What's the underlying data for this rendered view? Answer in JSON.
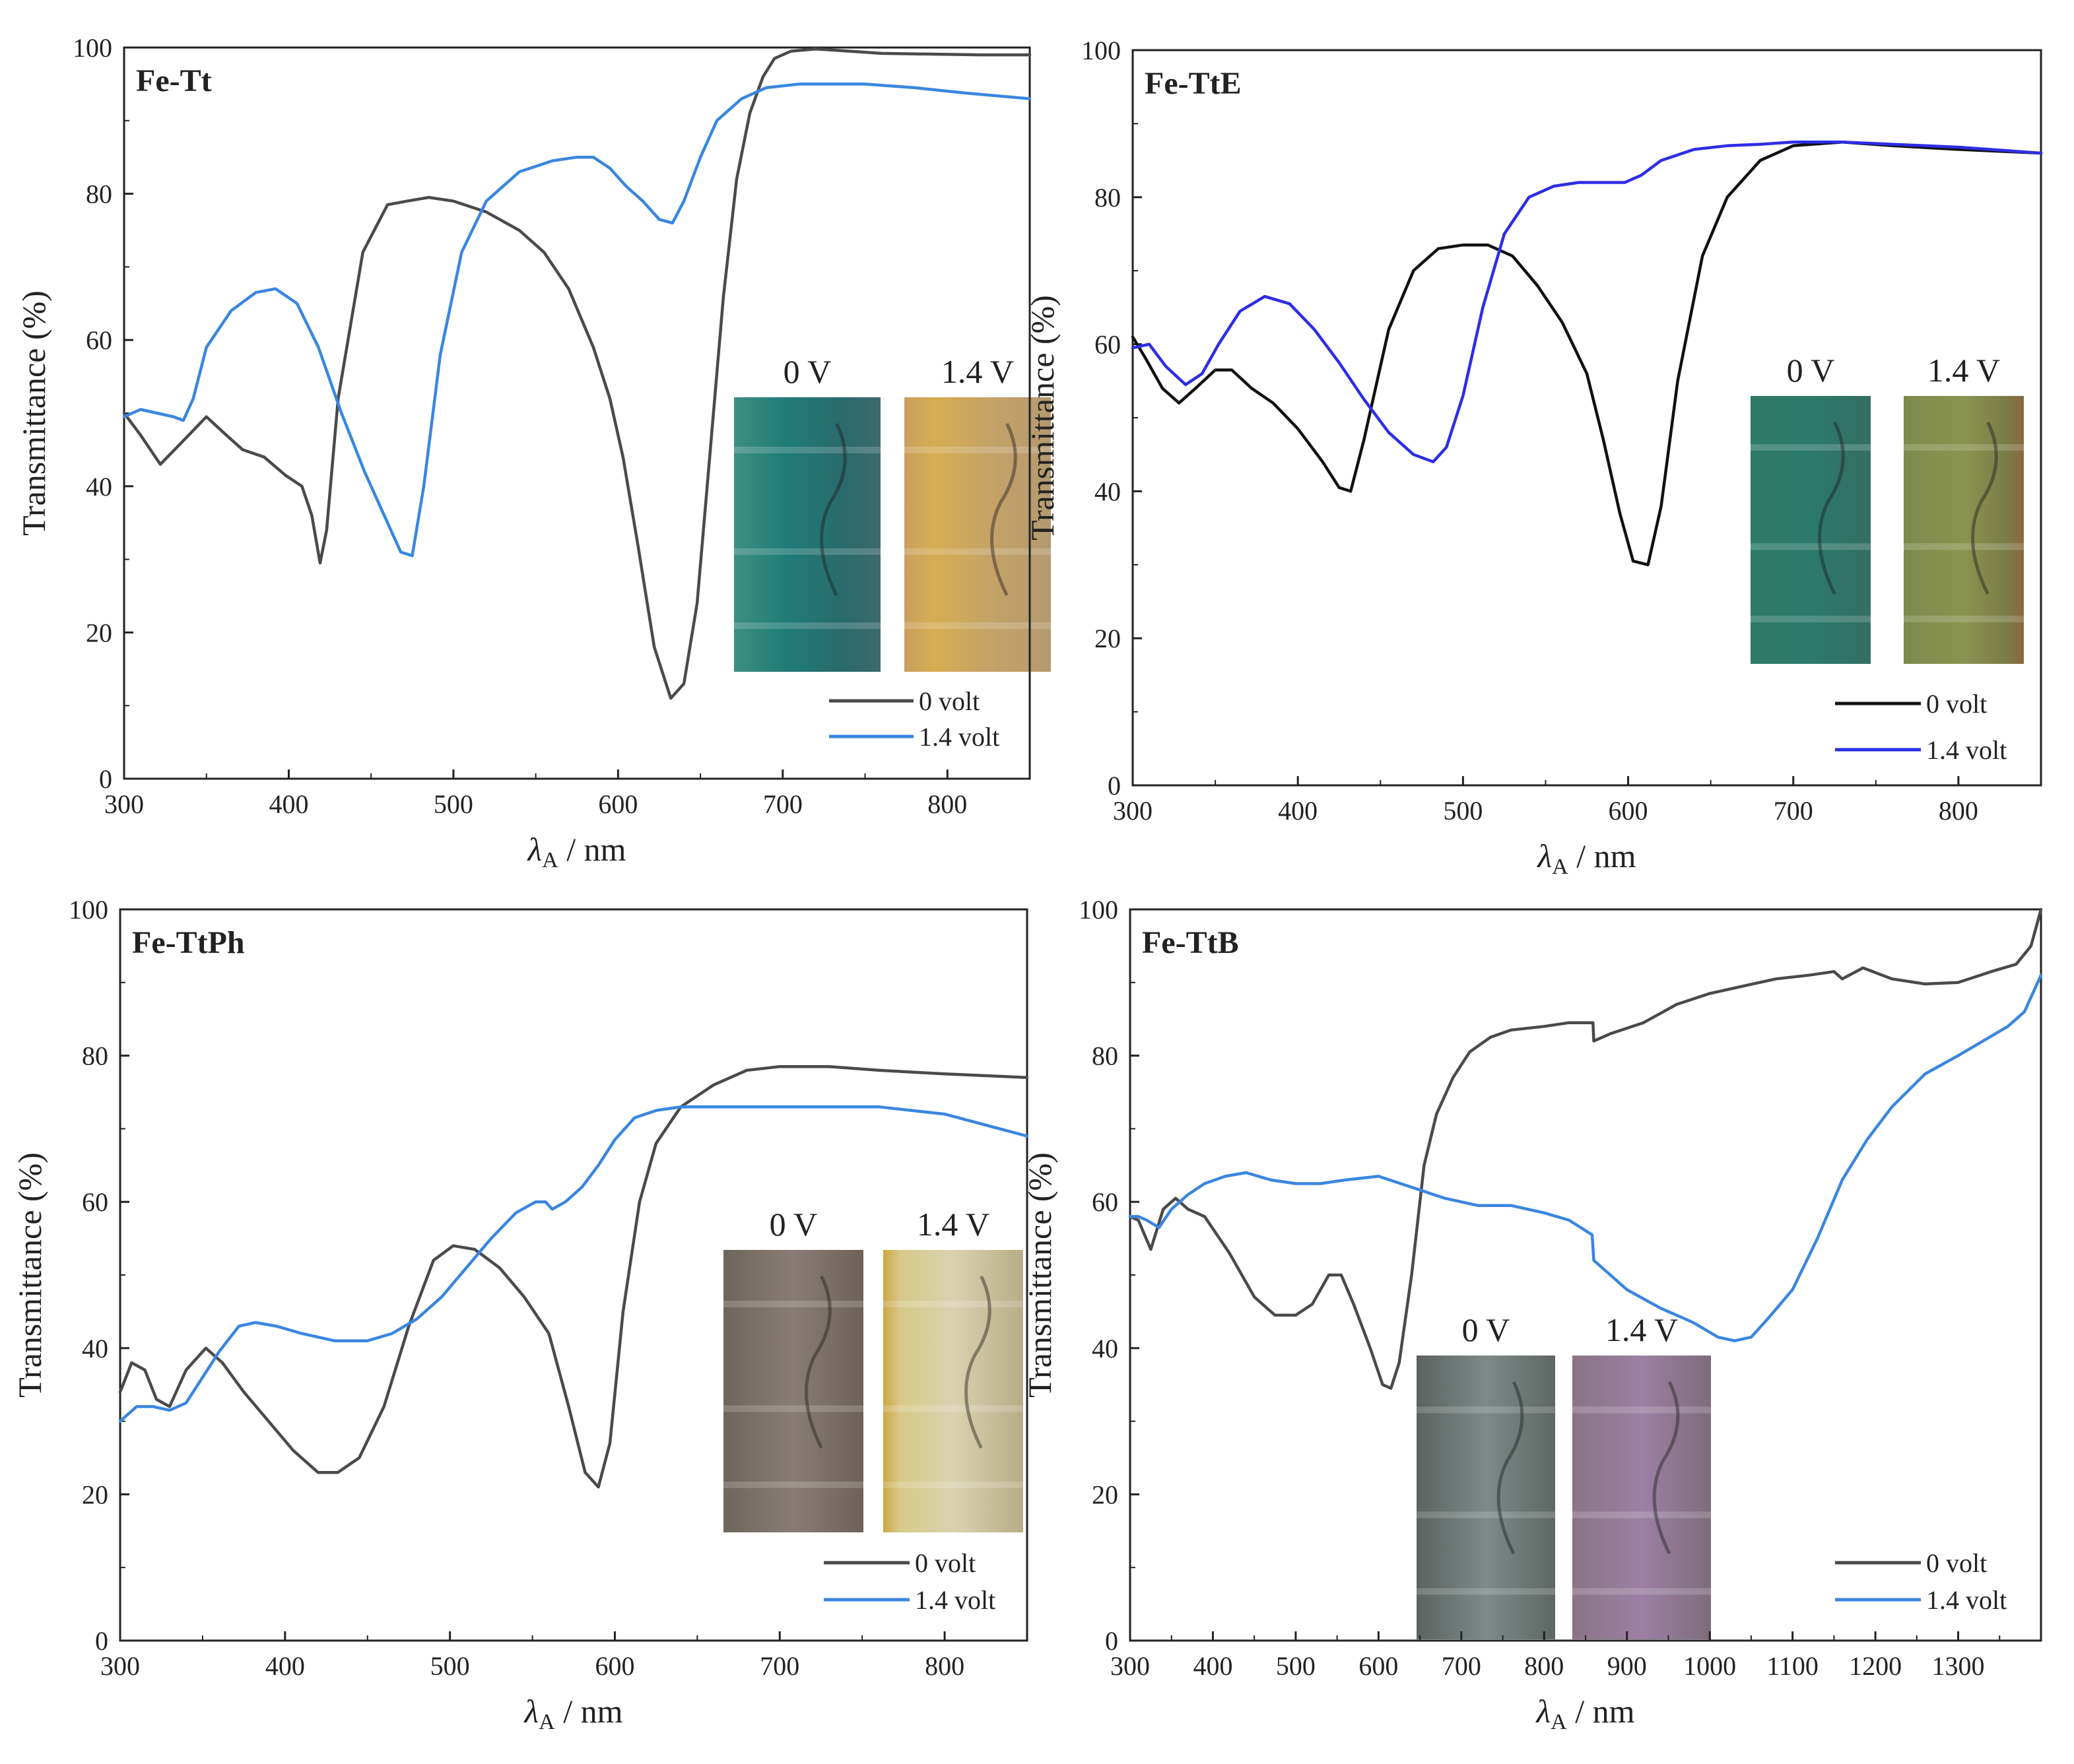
{
  "figure": {
    "x_axis_label": "λA / nm",
    "x_axis_label_main": "λ",
    "x_axis_label_sub": "A",
    "x_axis_label_unit": " / nm",
    "y_axis_label": "Transmittance (%)"
  },
  "colors": {
    "volt0": "#4a4a4a",
    "volt0_dark": "#111111",
    "volt14": "#3a86e0",
    "volt14_violet": "#2d2de6",
    "axis": "#222222"
  },
  "chart_data": [
    {
      "type": "line",
      "title": "Fe-Tt",
      "xlabel": "λA / nm",
      "ylabel": "Transmittance (%)",
      "xlim": [
        300,
        850
      ],
      "ylim": [
        0,
        100
      ],
      "xticks": [
        300,
        400,
        500,
        600,
        700,
        800
      ],
      "yticks": [
        0,
        20,
        40,
        60,
        80,
        100
      ],
      "legend_position": "bottom-right",
      "insets": [
        {
          "label": "0 V",
          "tint": "teal"
        },
        {
          "label": "1.4 V",
          "tint": "amber"
        }
      ],
      "series": [
        {
          "name": "0 volt",
          "color_key": "volt0",
          "x": [
            300,
            310,
            322,
            335,
            350,
            362,
            372,
            385,
            398,
            408,
            414,
            419,
            423,
            430,
            445,
            460,
            472,
            485,
            500,
            520,
            540,
            555,
            570,
            585,
            595,
            603,
            612,
            622,
            632,
            640,
            648,
            656,
            664,
            672,
            680,
            688,
            695,
            705,
            720,
            740,
            760,
            790,
            820,
            850
          ],
          "y": [
            50,
            47,
            43,
            46,
            49.5,
            47,
            45,
            44,
            41.5,
            40,
            36,
            29.5,
            34,
            52,
            72,
            78.5,
            79,
            79.5,
            79,
            77.5,
            75,
            72,
            67,
            59,
            52,
            44,
            32,
            18,
            11,
            13,
            24,
            45,
            66,
            82,
            91,
            96,
            98.5,
            99.5,
            99.8,
            99.5,
            99.2,
            99.1,
            99,
            99
          ]
        },
        {
          "name": "1.4 volt",
          "color_key": "volt14",
          "x": [
            300,
            310,
            320,
            330,
            336,
            342,
            350,
            365,
            380,
            392,
            405,
            418,
            432,
            446,
            458,
            468,
            475,
            482,
            492,
            505,
            520,
            540,
            560,
            575,
            585,
            595,
            605,
            615,
            625,
            633,
            640,
            650,
            660,
            675,
            690,
            710,
            730,
            750,
            780,
            810,
            850
          ],
          "y": [
            49.5,
            50.5,
            50,
            49.5,
            49,
            52,
            59,
            64,
            66.5,
            67,
            65,
            59,
            50,
            42,
            36,
            31,
            30.5,
            40,
            58,
            72,
            79,
            83,
            84.5,
            85,
            85,
            83.5,
            81,
            79,
            76.5,
            76,
            79,
            85,
            90,
            93,
            94.5,
            95,
            95,
            95,
            94.5,
            93.8,
            93
          ]
        }
      ]
    },
    {
      "type": "line",
      "title": "Fe-TtE",
      "xlabel": "λA / nm",
      "ylabel": "Transmittance (%)",
      "xlim": [
        300,
        850
      ],
      "ylim": [
        0,
        100
      ],
      "xticks": [
        300,
        400,
        500,
        600,
        700,
        800
      ],
      "yticks": [
        0,
        20,
        40,
        60,
        80,
        100
      ],
      "legend_position": "bottom-right",
      "insets": [
        {
          "label": "0 V",
          "tint": "teal"
        },
        {
          "label": "1.4 V",
          "tint": "olive"
        }
      ],
      "series": [
        {
          "name": "0 volt",
          "color_key": "volt0_dark",
          "x": [
            300,
            308,
            318,
            328,
            338,
            350,
            360,
            372,
            385,
            400,
            415,
            425,
            432,
            440,
            455,
            470,
            485,
            500,
            515,
            530,
            545,
            560,
            575,
            585,
            595,
            603,
            612,
            620,
            630,
            645,
            660,
            680,
            700,
            730,
            760,
            800,
            850
          ],
          "y": [
            61,
            58,
            54,
            52,
            54,
            56.5,
            56.5,
            54,
            52,
            48.5,
            44,
            40.5,
            40,
            47,
            62,
            70,
            73,
            73.5,
            73.5,
            72,
            68,
            63,
            56,
            47,
            37,
            30.5,
            30,
            38,
            55,
            72,
            80,
            85,
            87,
            87.5,
            87,
            86.5,
            86
          ]
        },
        {
          "name": "1.4 volt",
          "color_key": "volt14_violet",
          "x": [
            300,
            310,
            320,
            332,
            342,
            352,
            365,
            380,
            395,
            410,
            425,
            440,
            455,
            470,
            482,
            490,
            500,
            512,
            525,
            540,
            555,
            570,
            585,
            598,
            608,
            620,
            640,
            660,
            680,
            700,
            730,
            760,
            800,
            850
          ],
          "y": [
            59.5,
            60,
            57,
            54.5,
            56,
            60,
            64.5,
            66.5,
            65.5,
            62,
            57.5,
            52.5,
            48,
            45,
            44,
            46,
            53,
            65,
            75,
            80,
            81.5,
            82,
            82,
            82,
            83,
            85,
            86.5,
            87,
            87.2,
            87.5,
            87.5,
            87.2,
            86.8,
            86
          ]
        }
      ]
    },
    {
      "type": "line",
      "title": "Fe-TtPh",
      "xlabel": "λA / nm",
      "ylabel": "Transmittance (%)",
      "xlim": [
        300,
        850
      ],
      "ylim": [
        0,
        100
      ],
      "xticks": [
        300,
        400,
        500,
        600,
        700,
        800
      ],
      "yticks": [
        0,
        20,
        40,
        60,
        80,
        100
      ],
      "legend_position": "bottom-right",
      "insets": [
        {
          "label": "0 V",
          "tint": "taupe"
        },
        {
          "label": "1.4 V",
          "tint": "pale-yellow"
        }
      ],
      "series": [
        {
          "name": "0 volt",
          "color_key": "volt0",
          "x": [
            300,
            307,
            315,
            322,
            330,
            340,
            352,
            362,
            375,
            390,
            405,
            420,
            432,
            445,
            460,
            475,
            490,
            502,
            515,
            530,
            545,
            560,
            572,
            582,
            590,
            597,
            605,
            615,
            625,
            640,
            660,
            680,
            700,
            730,
            760,
            800,
            850
          ],
          "y": [
            34,
            38,
            37,
            33,
            32,
            37,
            40,
            38,
            34,
            30,
            26,
            23,
            23,
            25,
            32,
            43,
            52,
            54,
            53.5,
            51,
            47,
            42,
            32,
            23,
            21,
            27,
            45,
            60,
            68,
            73,
            76,
            78,
            78.5,
            78.5,
            78,
            77.5,
            77
          ]
        },
        {
          "name": "1.4 volt",
          "color_key": "volt14",
          "x": [
            300,
            310,
            320,
            330,
            340,
            350,
            360,
            372,
            382,
            395,
            410,
            430,
            450,
            465,
            480,
            495,
            510,
            525,
            540,
            552,
            558,
            562,
            570,
            580,
            590,
            600,
            612,
            625,
            640,
            660,
            690,
            720,
            760,
            800,
            850
          ],
          "y": [
            30,
            32,
            32,
            31.5,
            32.5,
            36,
            39.5,
            43,
            43.5,
            43,
            42,
            41,
            41,
            42,
            44,
            47,
            51,
            55,
            58.5,
            60,
            60,
            59,
            60,
            62,
            65,
            68.5,
            71.5,
            72.5,
            73,
            73,
            73,
            73,
            73,
            72,
            69
          ]
        }
      ]
    },
    {
      "type": "line",
      "title": "Fe-TtB",
      "xlabel": "λA / nm",
      "ylabel": "Transmittance (%)",
      "xlim": [
        300,
        1400
      ],
      "ylim": [
        0,
        100
      ],
      "xticks": [
        300,
        400,
        500,
        600,
        700,
        800,
        900,
        1000,
        1100,
        1200,
        1300
      ],
      "yticks": [
        0,
        20,
        40,
        60,
        80,
        100
      ],
      "legend_position": "bottom-right",
      "insets": [
        {
          "label": "0 V",
          "tint": "blue-grey"
        },
        {
          "label": "1.4 V",
          "tint": "lavender"
        }
      ],
      "series": [
        {
          "name": "0 volt",
          "color_key": "volt0",
          "x": [
            300,
            310,
            325,
            340,
            355,
            370,
            390,
            420,
            450,
            475,
            500,
            520,
            540,
            555,
            570,
            590,
            605,
            615,
            625,
            640,
            655,
            670,
            690,
            710,
            735,
            760,
            800,
            830,
            859,
            860,
            880,
            920,
            960,
            1000,
            1040,
            1080,
            1120,
            1150,
            1160,
            1185,
            1220,
            1260,
            1300,
            1340,
            1370,
            1388,
            1400
          ],
          "y": [
            58,
            57.5,
            53.5,
            59,
            60.5,
            59,
            58,
            53,
            47,
            44.5,
            44.5,
            46,
            50,
            50,
            46,
            40,
            35,
            34.5,
            38,
            50,
            65,
            72,
            77,
            80.5,
            82.5,
            83.5,
            84,
            84.5,
            84.5,
            82,
            83,
            84.5,
            87,
            88.5,
            89.5,
            90.5,
            91,
            91.5,
            90.5,
            92,
            90.5,
            89.8,
            90,
            91.5,
            92.5,
            95,
            100
          ]
        },
        {
          "name": "1.4 volt",
          "color_key": "volt14",
          "x": [
            300,
            310,
            320,
            335,
            350,
            370,
            390,
            415,
            440,
            470,
            500,
            530,
            560,
            600,
            640,
            680,
            720,
            760,
            800,
            830,
            858,
            860,
            875,
            900,
            940,
            980,
            1010,
            1030,
            1050,
            1070,
            1100,
            1130,
            1160,
            1190,
            1220,
            1260,
            1300,
            1330,
            1360,
            1380,
            1400
          ],
          "y": [
            58,
            58,
            57.5,
            56.5,
            59,
            61,
            62.5,
            63.5,
            64,
            63,
            62.5,
            62.5,
            63,
            63.5,
            62,
            60.5,
            59.5,
            59.5,
            58.5,
            57.5,
            55.5,
            52,
            50.5,
            48,
            45.5,
            43.5,
            41.5,
            41,
            41.5,
            44,
            48,
            55,
            63,
            68.5,
            73,
            77.5,
            80,
            82,
            84,
            86,
            91
          ]
        }
      ]
    }
  ],
  "legend": {
    "volt0_label": "0 volt",
    "volt14_label": "1.4 volt"
  }
}
